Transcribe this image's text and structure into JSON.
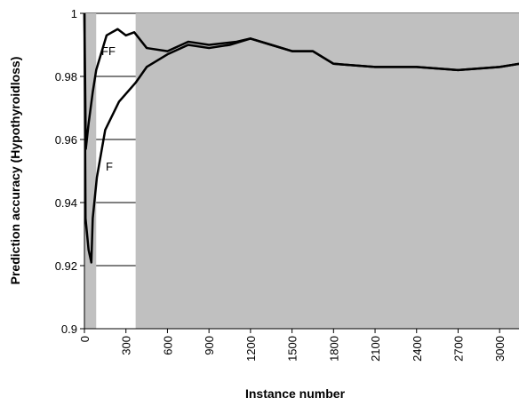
{
  "chart_data": {
    "type": "line",
    "x_label": "Instance number",
    "y_label": "Prediction accuracy (Hypothyroidloss)",
    "xlim": [
      0,
      3140
    ],
    "ylim": [
      0.9,
      1
    ],
    "xticks": [
      0,
      300,
      600,
      900,
      1200,
      1500,
      1800,
      2100,
      2400,
      2700,
      3000
    ],
    "yticks": [
      0.9,
      0.92,
      0.94,
      0.96,
      0.98,
      1
    ],
    "grid": true,
    "shaded_regions": [
      [
        0,
        85
      ],
      [
        370,
        3140
      ]
    ],
    "shade_color": "#c0c0c0",
    "series": [
      {
        "name": "FF",
        "color": "#000000",
        "x": [
          0,
          10,
          30,
          60,
          85,
          160,
          240,
          300,
          360,
          450,
          600,
          750,
          900,
          1100,
          1200,
          1350,
          1500,
          1650,
          1800,
          2100,
          2400,
          2700,
          3000,
          3140
        ],
        "values": [
          1,
          0.957,
          0.965,
          0.975,
          0.982,
          0.993,
          0.995,
          0.993,
          0.994,
          0.989,
          0.988,
          0.991,
          0.99,
          0.991,
          0.992,
          0.99,
          0.988,
          0.988,
          0.984,
          0.983,
          0.983,
          0.982,
          0.983,
          0.984
        ]
      },
      {
        "name": "F",
        "color": "#000000",
        "x": [
          0,
          8,
          30,
          50,
          60,
          90,
          150,
          250,
          370,
          450,
          600,
          750,
          900,
          1050,
          1200,
          1350,
          1500,
          1650,
          1800,
          2100,
          2400,
          2700,
          3000,
          3140
        ],
        "values": [
          1,
          0.935,
          0.925,
          0.921,
          0.935,
          0.948,
          0.963,
          0.972,
          0.978,
          0.983,
          0.987,
          0.99,
          0.989,
          0.99,
          0.992,
          0.99,
          0.988,
          0.988,
          0.984,
          0.983,
          0.983,
          0.982,
          0.983,
          0.984
        ]
      }
    ]
  }
}
